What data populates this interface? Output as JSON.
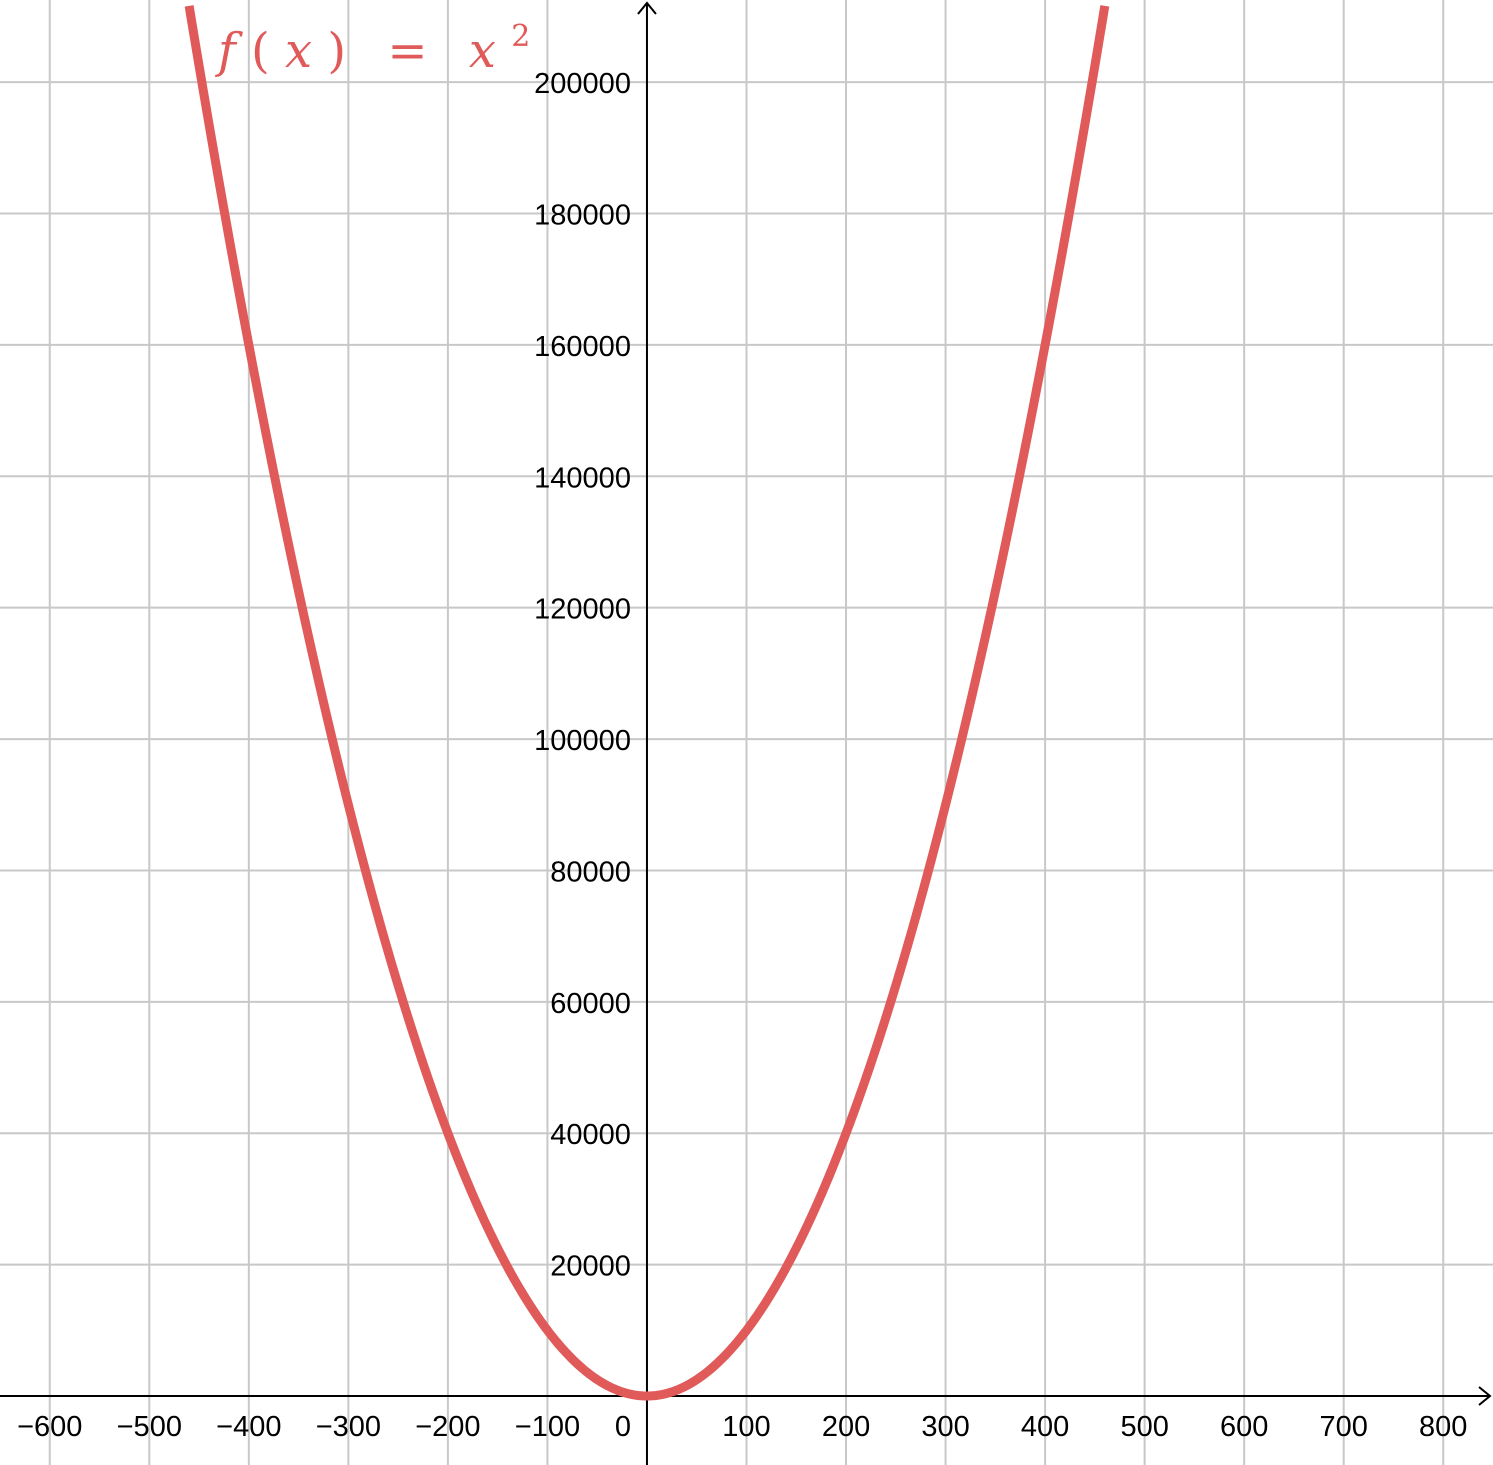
{
  "chart_data": {
    "type": "line",
    "title": "",
    "xlabel": "",
    "ylabel": "",
    "xlim": [
      -650,
      850
    ],
    "ylim": [
      -10500,
      212500
    ],
    "x_ticks": [
      -600,
      -500,
      -400,
      -300,
      -200,
      -100,
      0,
      100,
      200,
      300,
      400,
      500,
      600,
      700,
      800
    ],
    "x_tick_labels": [
      "−600",
      "−500",
      "−400",
      "−300",
      "−200",
      "−100",
      "0",
      "100",
      "200",
      "300",
      "400",
      "500",
      "600",
      "700",
      "800"
    ],
    "y_ticks": [
      20000,
      40000,
      60000,
      80000,
      100000,
      120000,
      140000,
      160000,
      180000,
      200000
    ],
    "y_tick_labels": [
      "20000",
      "40000",
      "60000",
      "80000",
      "100000",
      "120000",
      "140000",
      "160000",
      "180000",
      "200000"
    ],
    "grid": true,
    "series": [
      {
        "name": "f(x) = x^2",
        "function": "x^2",
        "color": "#e05a5a",
        "x": [
          -460,
          -400,
          -300,
          -200,
          -100,
          0,
          100,
          200,
          300,
          400,
          460
        ],
        "y": [
          211600,
          160000,
          90000,
          40000,
          10000,
          0,
          10000,
          40000,
          90000,
          160000,
          211600
        ]
      }
    ],
    "annotation": {
      "f": "f",
      "open_paren": "(",
      "x": "x",
      "close_paren": ")",
      "equals": "=",
      "rhs_base": "x",
      "exponent": "2"
    }
  }
}
